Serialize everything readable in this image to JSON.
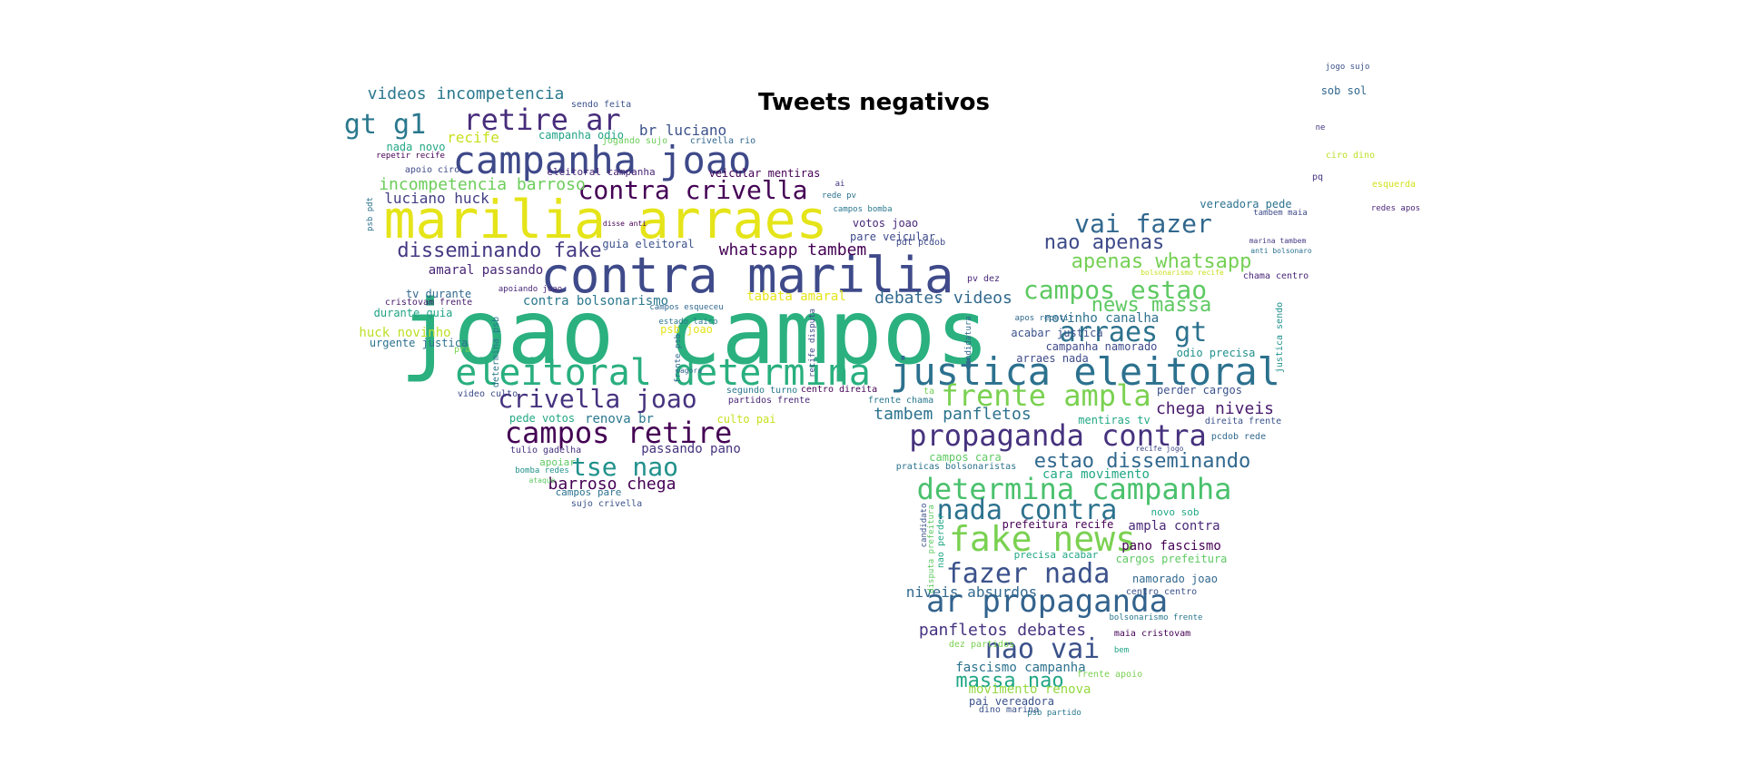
{
  "chart_data": {
    "type": "wordcloud",
    "title": "Tweets negativos",
    "words": [
      {
        "text": "joao campos",
        "color": "#2bb07f"
      },
      {
        "text": "contra marilia",
        "color": "#3e4a89"
      },
      {
        "text": "marilia arraes",
        "color": "#e5e419"
      },
      {
        "text": "campanha joao",
        "color": "#3e4989"
      },
      {
        "text": "justica eleitoral",
        "color": "#2c718e"
      },
      {
        "text": "eleitoral determina",
        "color": "#29af7f"
      },
      {
        "text": "ar propaganda",
        "color": "#33638d"
      },
      {
        "text": "fake news",
        "color": "#7ad151"
      },
      {
        "text": "propaganda contra",
        "color": "#46327e"
      },
      {
        "text": "determina campanha",
        "color": "#4ac16d"
      },
      {
        "text": "contra crivella",
        "color": "#440154"
      },
      {
        "text": "campos retire",
        "color": "#440154"
      },
      {
        "text": "retire ar",
        "color": "#472d7b"
      },
      {
        "text": "frente ampla",
        "color": "#7ad151"
      },
      {
        "text": "arraes gt",
        "color": "#2c728e"
      },
      {
        "text": "campos estao",
        "color": "#5ec962"
      },
      {
        "text": "vai fazer",
        "color": "#31688e"
      },
      {
        "text": "fazer nada",
        "color": "#3b528b"
      },
      {
        "text": "nada contra",
        "color": "#2c728e"
      },
      {
        "text": "crivella joao",
        "color": "#46337f"
      },
      {
        "text": "nao vai",
        "color": "#3b528b"
      },
      {
        "text": "gt g1",
        "color": "#2a788e"
      },
      {
        "text": "tse nao",
        "color": "#21918c"
      },
      {
        "text": "disseminando fake",
        "color": "#443983"
      },
      {
        "text": "estao disseminando",
        "color": "#31688e"
      },
      {
        "text": "news massa",
        "color": "#5ec962"
      },
      {
        "text": "apenas whatsapp",
        "color": "#75d054"
      },
      {
        "text": "nao apenas",
        "color": "#3e4a89"
      },
      {
        "text": "massa nao",
        "color": "#21a685"
      },
      {
        "text": "panfletos debates",
        "color": "#46337f"
      },
      {
        "text": "whatsapp tambem",
        "color": "#440154"
      },
      {
        "text": "tambem panfletos",
        "color": "#2c728e"
      },
      {
        "text": "debates videos",
        "color": "#31688e"
      },
      {
        "text": "videos incompetencia",
        "color": "#2a788e"
      },
      {
        "text": "incompetencia barroso",
        "color": "#6ccd5a"
      },
      {
        "text": "barroso chega",
        "color": "#440154"
      },
      {
        "text": "chega niveis",
        "color": "#481a6c"
      },
      {
        "text": "niveis absurdos",
        "color": "#31688e"
      },
      {
        "text": "luciano huck",
        "color": "#433e85"
      },
      {
        "text": "br luciano",
        "color": "#3b528b"
      },
      {
        "text": "contra bolsonarismo",
        "color": "#2a788e"
      },
      {
        "text": "tabata amaral",
        "color": "#e5e419"
      },
      {
        "text": "amaral passando",
        "color": "#482677"
      },
      {
        "text": "passando pano",
        "color": "#46337f"
      },
      {
        "text": "pano fascismo",
        "color": "#440154"
      },
      {
        "text": "fascismo campanha",
        "color": "#2c728e"
      },
      {
        "text": "campanha odio",
        "color": "#20a386"
      },
      {
        "text": "recife",
        "color": "#c8e020"
      },
      {
        "text": "nada novo",
        "color": "#22a884"
      },
      {
        "text": "novinho canalha",
        "color": "#2c728e"
      },
      {
        "text": "huck novinho",
        "color": "#bddf26"
      },
      {
        "text": "urgente justica",
        "color": "#2c728e"
      },
      {
        "text": "durante guia",
        "color": "#20a386"
      },
      {
        "text": "tv durante",
        "color": "#31688e"
      },
      {
        "text": "guia eleitoral",
        "color": "#3b528b"
      },
      {
        "text": "eleitoral campanha",
        "color": "#482677"
      },
      {
        "text": "veicular mentiras",
        "color": "#440154"
      },
      {
        "text": "pare veicular",
        "color": "#3e4a89"
      },
      {
        "text": "votos joao",
        "color": "#482878"
      },
      {
        "text": "pede votos",
        "color": "#22a884"
      },
      {
        "text": "renova br",
        "color": "#2a788e"
      },
      {
        "text": "culto pai",
        "color": "#c8e020"
      },
      {
        "text": "pai vereadora",
        "color": "#3b528b"
      },
      {
        "text": "movimento renova",
        "color": "#95d840"
      },
      {
        "text": "cara movimento",
        "color": "#22a884"
      },
      {
        "text": "campos cara",
        "color": "#5ec962"
      },
      {
        "text": "ampla contra",
        "color": "#482878"
      },
      {
        "text": "prefeitura recife",
        "color": "#440154"
      },
      {
        "text": "cargos prefeitura",
        "color": "#5ec962"
      },
      {
        "text": "perder cargos",
        "color": "#3b528b"
      },
      {
        "text": "namorado joao",
        "color": "#31688e"
      },
      {
        "text": "campanha namorado",
        "color": "#3e4a89"
      },
      {
        "text": "acabar justica",
        "color": "#3b528b"
      },
      {
        "text": "odio precisa",
        "color": "#21918c"
      },
      {
        "text": "precisa acabar",
        "color": "#21a685"
      },
      {
        "text": "arraes nada",
        "color": "#3e4a89"
      },
      {
        "text": "mentiras tv",
        "color": "#22a884"
      },
      {
        "text": "sob sol",
        "color": "#31688e"
      },
      {
        "text": "vereadora pede",
        "color": "#2c728e"
      },
      {
        "text": "dino marina",
        "color": "#3b528b"
      },
      {
        "text": "novo sob",
        "color": "#22a884"
      },
      {
        "text": "frente apoio",
        "color": "#7ad151"
      },
      {
        "text": "apoiar",
        "color": "#5ec962"
      },
      {
        "text": "tulio gadelha",
        "color": "#46337f"
      },
      {
        "text": "bomba redes",
        "color": "#21918c"
      },
      {
        "text": "campos pare",
        "color": "#2c728e"
      },
      {
        "text": "sujo crivella",
        "color": "#3b528b"
      },
      {
        "text": "video culto",
        "color": "#3e4a89"
      },
      {
        "text": "segundo turno",
        "color": "#2a788e"
      },
      {
        "text": "partidos frente",
        "color": "#482677"
      },
      {
        "text": "centro direita",
        "color": "#440154"
      },
      {
        "text": "frente chama",
        "color": "#2a788e"
      },
      {
        "text": "chama centro",
        "color": "#482677"
      },
      {
        "text": "centro centro",
        "color": "#3b528b"
      },
      {
        "text": "maia cristovam",
        "color": "#440154"
      },
      {
        "text": "dez partidos",
        "color": "#7ad151"
      },
      {
        "text": "psb partido",
        "color": "#2a788e"
      },
      {
        "text": "psb joao",
        "color": "#e5e419"
      },
      {
        "text": "estado laico",
        "color": "#2a788e"
      },
      {
        "text": "direita frente",
        "color": "#3b528b"
      },
      {
        "text": "praticas bolsonaristas",
        "color": "#2c728e"
      },
      {
        "text": "pcdob rede",
        "color": "#31688e"
      },
      {
        "text": "pdt pcdob",
        "color": "#3e4a89"
      },
      {
        "text": "pv dez",
        "color": "#482677"
      },
      {
        "text": "cristovam frente",
        "color": "#481a6c"
      },
      {
        "text": "apoio ciro",
        "color": "#3e4a89"
      },
      {
        "text": "repetir recife",
        "color": "#440154"
      },
      {
        "text": "sendo feita",
        "color": "#3b528b"
      },
      {
        "text": "jogando sujo",
        "color": "#6ccd5a"
      },
      {
        "text": "crivella rio",
        "color": "#31688e"
      },
      {
        "text": "apoiando joao",
        "color": "#482677"
      },
      {
        "text": "disse anti",
        "color": "#440154"
      },
      {
        "text": "campos esqueceu",
        "color": "#31688e"
      },
      {
        "text": "campos bomba",
        "color": "#2a788e"
      },
      {
        "text": "ta",
        "color": "#75d054"
      },
      {
        "text": "ai",
        "color": "#46337f"
      },
      {
        "text": "rede pv",
        "color": "#2c728e"
      },
      {
        "text": "jogo sujo",
        "color": "#3b528b"
      },
      {
        "text": "ciro dino",
        "color": "#bddf26"
      },
      {
        "text": "esquerda",
        "color": "#d2e21b"
      },
      {
        "text": "pq",
        "color": "#46337f"
      },
      {
        "text": "ne",
        "color": "#46337f"
      },
      {
        "text": "redes apos",
        "color": "#482677"
      },
      {
        "text": "tambem maia",
        "color": "#3e4a89"
      },
      {
        "text": "marina tambem",
        "color": "#443983"
      },
      {
        "text": "anti bolsonaro",
        "color": "#2c728e"
      },
      {
        "text": "bolsonarismo recife",
        "color": "#c8e020"
      },
      {
        "text": "bolsonarismo frente",
        "color": "#2a788e"
      },
      {
        "text": "apos repetir",
        "color": "#31688e"
      },
      {
        "text": "recife jogo",
        "color": "#3e4a89"
      },
      {
        "text": "ataque",
        "color": "#5ec962"
      },
      {
        "text": "agora",
        "color": "#31688e"
      },
      {
        "text": "pra",
        "color": "#7ad151"
      },
      {
        "text": "bem",
        "color": "#20a386"
      },
      {
        "text": "psb pdt",
        "color": "#2c728e"
      },
      {
        "text": "determina psb",
        "color": "#2a788e"
      },
      {
        "text": "frente psb",
        "color": "#31688e"
      },
      {
        "text": "recife disputa",
        "color": "#3e4a89"
      },
      {
        "text": "candidatura",
        "color": "#31688e"
      },
      {
        "text": "justica sendo",
        "color": "#21918c"
      },
      {
        "text": "nao perder",
        "color": "#22a884"
      },
      {
        "text": "disputa prefeitura",
        "color": "#5ec962"
      },
      {
        "text": "candidato",
        "color": "#3b528b"
      }
    ]
  }
}
